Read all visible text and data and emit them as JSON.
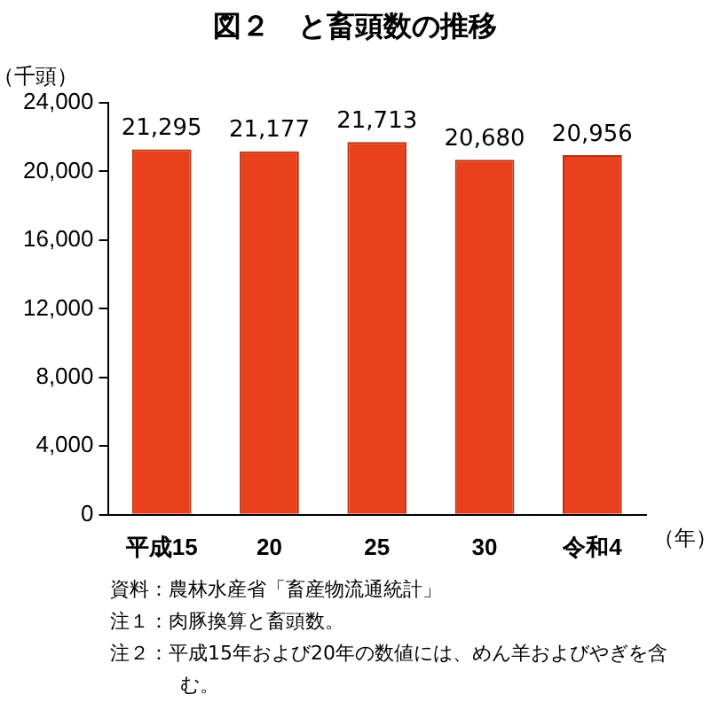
{
  "chart_data": {
    "type": "bar",
    "title": "図２　と畜頭数の推移",
    "ylabel": "（千頭）",
    "xlabel": "（年）",
    "categories": [
      "平成15",
      "20",
      "25",
      "30",
      "令和4"
    ],
    "values": [
      21295,
      21177,
      21713,
      20680,
      20956
    ],
    "color": "#e8411b",
    "value_labels": [
      "21,295",
      "21,177",
      "21,713",
      "20,680",
      "20,956"
    ],
    "ylim": [
      0,
      24000
    ],
    "yticks": [
      0,
      {
        "value": 4000,
        "label": "4,000"
      },
      {
        "value": 8000,
        "label": "8,000"
      },
      {
        "value": 12000,
        "label": "12,000"
      },
      {
        "value": 16000,
        "label": "16,000"
      },
      {
        "value": 20000,
        "label": "20,000"
      },
      {
        "value": 24000,
        "label": "24,000"
      }
    ],
    "grid": false,
    "legend": false,
    "annotations": [
      "資料：農林水産省「畜産物流通統計」",
      "注１：肉豚換算と畜頭数。",
      "注２：平成15年および20年の数値には、めん羊およびやぎを含む。"
    ]
  }
}
